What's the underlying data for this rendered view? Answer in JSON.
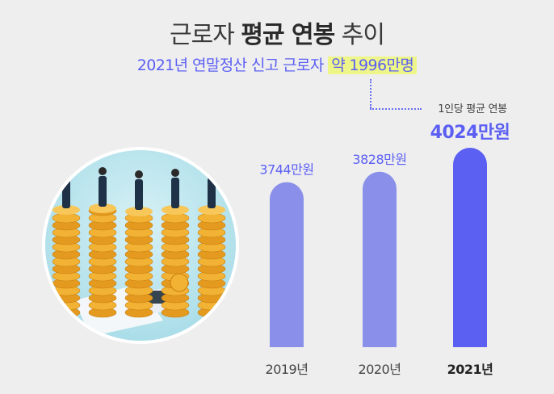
{
  "header": {
    "title_a": "근로자 ",
    "title_b": "평균 연봉",
    "title_c": " 추이",
    "subtitle_a": "2021년 연말정산 신고 근로자 ",
    "subtitle_b": "약 1996만명"
  },
  "callout": {
    "label": "1인당 평균 연봉"
  },
  "colors": {
    "bar": "#8a90ea",
    "bar_highlight": "#5b5ff2",
    "accent": "#5b5ff2"
  },
  "chart_data": {
    "type": "bar",
    "title": "근로자 평균 연봉 추이",
    "subtitle": "2021년 연말정산 신고 근로자 약 1996만명",
    "categories": [
      "2019년",
      "2020년",
      "2021년"
    ],
    "values": [
      3744,
      3828,
      4024
    ],
    "value_labels": [
      "3744만원",
      "3828만원",
      "4024만원"
    ],
    "unit": "만원",
    "highlight_index": 2,
    "ylim": [
      2400,
      4024
    ],
    "grid": false,
    "legend": "none"
  }
}
